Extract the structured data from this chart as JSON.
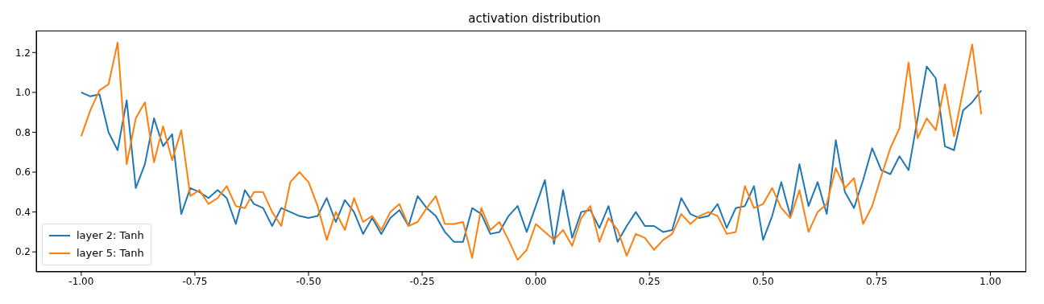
{
  "chart_data": {
    "type": "line",
    "title": "activation distribution",
    "x": [
      -1.0,
      -0.98,
      -0.96,
      -0.94,
      -0.92,
      -0.9,
      -0.88,
      -0.86,
      -0.84,
      -0.82,
      -0.8,
      -0.78,
      -0.76,
      -0.74,
      -0.72,
      -0.7,
      -0.68,
      -0.66,
      -0.64,
      -0.62,
      -0.6,
      -0.58,
      -0.56,
      -0.54,
      -0.52,
      -0.5,
      -0.48,
      -0.46,
      -0.44,
      -0.42,
      -0.4,
      -0.38,
      -0.36,
      -0.34,
      -0.32,
      -0.3,
      -0.28,
      -0.26,
      -0.24,
      -0.22,
      -0.2,
      -0.18,
      -0.16,
      -0.14,
      -0.12,
      -0.1,
      -0.08,
      -0.06,
      -0.04,
      -0.02,
      0.0,
      0.02,
      0.04,
      0.06,
      0.08,
      0.1,
      0.12,
      0.14,
      0.16,
      0.18,
      0.2,
      0.22,
      0.24,
      0.26,
      0.28,
      0.3,
      0.32,
      0.34,
      0.36,
      0.38,
      0.4,
      0.42,
      0.44,
      0.46,
      0.48,
      0.5,
      0.52,
      0.54,
      0.56,
      0.58,
      0.6,
      0.62,
      0.64,
      0.66,
      0.68,
      0.7,
      0.72,
      0.74,
      0.76,
      0.78,
      0.8,
      0.82,
      0.84,
      0.86,
      0.88,
      0.9,
      0.92,
      0.94,
      0.96,
      0.98
    ],
    "series": [
      {
        "name": "layer 2: Tanh",
        "color": "#1f77b4",
        "values": [
          1.0,
          0.98,
          0.99,
          0.8,
          0.71,
          0.96,
          0.52,
          0.64,
          0.87,
          0.73,
          0.79,
          0.39,
          0.52,
          0.5,
          0.47,
          0.51,
          0.47,
          0.34,
          0.51,
          0.44,
          0.42,
          0.33,
          0.42,
          0.4,
          0.38,
          0.37,
          0.38,
          0.47,
          0.35,
          0.46,
          0.4,
          0.29,
          0.37,
          0.29,
          0.37,
          0.41,
          0.33,
          0.48,
          0.42,
          0.38,
          0.3,
          0.25,
          0.25,
          0.42,
          0.39,
          0.29,
          0.3,
          0.38,
          0.43,
          0.3,
          0.43,
          0.56,
          0.24,
          0.51,
          0.27,
          0.4,
          0.41,
          0.32,
          0.43,
          0.25,
          0.33,
          0.4,
          0.33,
          0.33,
          0.3,
          0.31,
          0.47,
          0.39,
          0.37,
          0.38,
          0.44,
          0.32,
          0.42,
          0.43,
          0.53,
          0.26,
          0.38,
          0.55,
          0.38,
          0.64,
          0.43,
          0.55,
          0.39,
          0.76,
          0.5,
          0.42,
          0.56,
          0.72,
          0.61,
          0.59,
          0.68,
          0.61,
          0.87,
          1.13,
          1.07,
          0.73,
          0.71,
          0.91,
          0.95,
          1.01
        ]
      },
      {
        "name": "layer 5: Tanh",
        "color": "#ff7f0e",
        "values": [
          0.78,
          0.91,
          1.01,
          1.04,
          1.25,
          0.64,
          0.87,
          0.95,
          0.65,
          0.83,
          0.66,
          0.81,
          0.48,
          0.51,
          0.44,
          0.47,
          0.53,
          0.43,
          0.42,
          0.5,
          0.5,
          0.4,
          0.33,
          0.55,
          0.6,
          0.55,
          0.43,
          0.26,
          0.4,
          0.31,
          0.47,
          0.35,
          0.38,
          0.31,
          0.4,
          0.44,
          0.33,
          0.35,
          0.42,
          0.48,
          0.34,
          0.34,
          0.35,
          0.17,
          0.42,
          0.31,
          0.35,
          0.26,
          0.16,
          0.21,
          0.34,
          0.3,
          0.26,
          0.31,
          0.23,
          0.37,
          0.43,
          0.25,
          0.37,
          0.31,
          0.18,
          0.29,
          0.27,
          0.21,
          0.26,
          0.29,
          0.39,
          0.34,
          0.38,
          0.4,
          0.38,
          0.29,
          0.3,
          0.53,
          0.42,
          0.44,
          0.52,
          0.42,
          0.37,
          0.51,
          0.3,
          0.4,
          0.44,
          0.62,
          0.52,
          0.57,
          0.34,
          0.43,
          0.58,
          0.72,
          0.82,
          1.15,
          0.77,
          0.87,
          0.81,
          1.04,
          0.78,
          1.01,
          1.24,
          0.89
        ]
      }
    ],
    "xlim": [
      -1.099,
      1.079
    ],
    "ylim": [
      0.1,
      1.31
    ],
    "xticks": [
      {
        "value": -1,
        "label": "-1.00"
      },
      {
        "value": -0.75,
        "label": "-0.75"
      },
      {
        "value": -0.5,
        "label": "-0.50"
      },
      {
        "value": -0.25,
        "label": "-0.25"
      },
      {
        "value": 0,
        "label": "0.00"
      },
      {
        "value": 0.25,
        "label": "0.25"
      },
      {
        "value": 0.5,
        "label": "0.50"
      },
      {
        "value": 0.75,
        "label": "0.75"
      },
      {
        "value": 1,
        "label": "1.00"
      }
    ],
    "yticks": [
      0.2,
      0.4,
      0.6,
      0.8,
      {
        "value": 1,
        "label": "1.0"
      },
      1.2
    ],
    "legend": "bottom left",
    "grid": false,
    "marker": "none",
    "line_style": "solid"
  }
}
